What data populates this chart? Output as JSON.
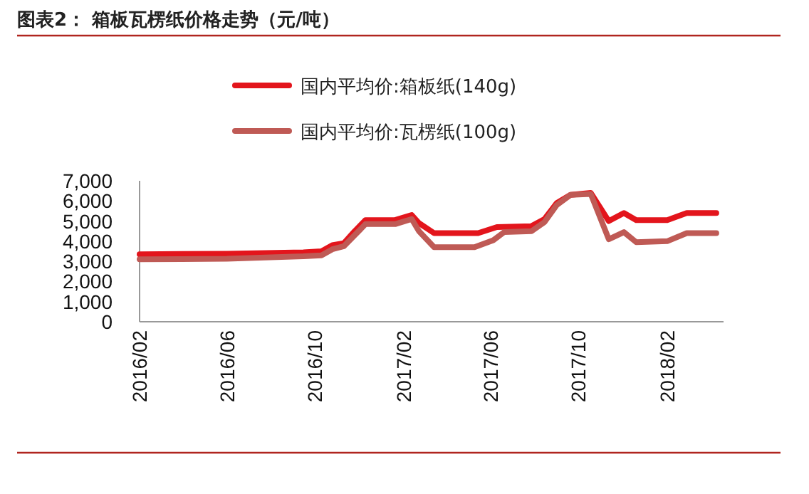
{
  "chart_data": {
    "type": "line",
    "title": "图表2：  箱板瓦楞纸价格走势（元/吨）",
    "xlim": [
      "2016-02-01",
      "2018-04-20"
    ],
    "xticks": [
      {
        "value": "2016-02-01",
        "label": "2016/02"
      },
      {
        "value": "2016-06-01",
        "label": "2016/06"
      },
      {
        "value": "2016-10-01",
        "label": "2016/10"
      },
      {
        "value": "2017-02-01",
        "label": "2017/02"
      },
      {
        "value": "2017-06-01",
        "label": "2017/06"
      },
      {
        "value": "2017-10-01",
        "label": "2017/10"
      },
      {
        "value": "2018-02-01",
        "label": "2018/02"
      }
    ],
    "ylim": [
      0,
      7000
    ],
    "yticks": [
      {
        "value": 0,
        "label": "0"
      },
      {
        "value": 1000,
        "label": "1,000"
      },
      {
        "value": 2000,
        "label": "2,000"
      },
      {
        "value": 3000,
        "label": "3,000"
      },
      {
        "value": 4000,
        "label": "4,000"
      },
      {
        "value": 5000,
        "label": "5,000"
      },
      {
        "value": 6000,
        "label": "6,000"
      },
      {
        "value": 7000,
        "label": "7,000"
      }
    ],
    "grid": false,
    "legend": "top",
    "line_style": "solid",
    "marker": "none",
    "series": [
      {
        "name": "国内平均价:箱板纸(140g)",
        "color": "#e3151c",
        "x": [
          "2016-02-01",
          "2016-06-01",
          "2016-09-15",
          "2016-10-10",
          "2016-10-25",
          "2016-11-10",
          "2016-11-25",
          "2016-12-10",
          "2017-01-20",
          "2017-02-12",
          "2017-02-22",
          "2017-03-15",
          "2017-05-15",
          "2017-06-10",
          "2017-07-28",
          "2017-08-15",
          "2017-09-01",
          "2017-09-20",
          "2017-10-18",
          "2017-11-12",
          "2017-12-03",
          "2017-12-20",
          "2018-02-01",
          "2018-02-28",
          "2018-04-10"
        ],
        "values": [
          3350,
          3380,
          3450,
          3500,
          3800,
          3900,
          4500,
          5050,
          5050,
          5300,
          4900,
          4400,
          4400,
          4700,
          4750,
          5100,
          5900,
          6300,
          6400,
          5000,
          5400,
          5050,
          5050,
          5400,
          5400
        ]
      },
      {
        "name": "国内平均价:瓦楞纸(100g)",
        "color": "#bf5a55",
        "x": [
          "2016-02-01",
          "2016-06-01",
          "2016-09-15",
          "2016-10-10",
          "2016-10-25",
          "2016-11-10",
          "2016-11-25",
          "2016-12-10",
          "2017-01-20",
          "2017-02-12",
          "2017-02-22",
          "2017-03-15",
          "2017-05-10",
          "2017-06-05",
          "2017-06-20",
          "2017-07-28",
          "2017-08-15",
          "2017-09-01",
          "2017-09-20",
          "2017-10-18",
          "2017-11-12",
          "2017-12-03",
          "2017-12-20",
          "2018-02-01",
          "2018-02-28",
          "2018-04-10"
        ],
        "values": [
          3100,
          3130,
          3250,
          3300,
          3600,
          3750,
          4300,
          4850,
          4850,
          5100,
          4500,
          3700,
          3700,
          4050,
          4450,
          4500,
          4950,
          5800,
          6300,
          6350,
          4100,
          4450,
          3950,
          4000,
          4400,
          4400
        ]
      }
    ]
  }
}
